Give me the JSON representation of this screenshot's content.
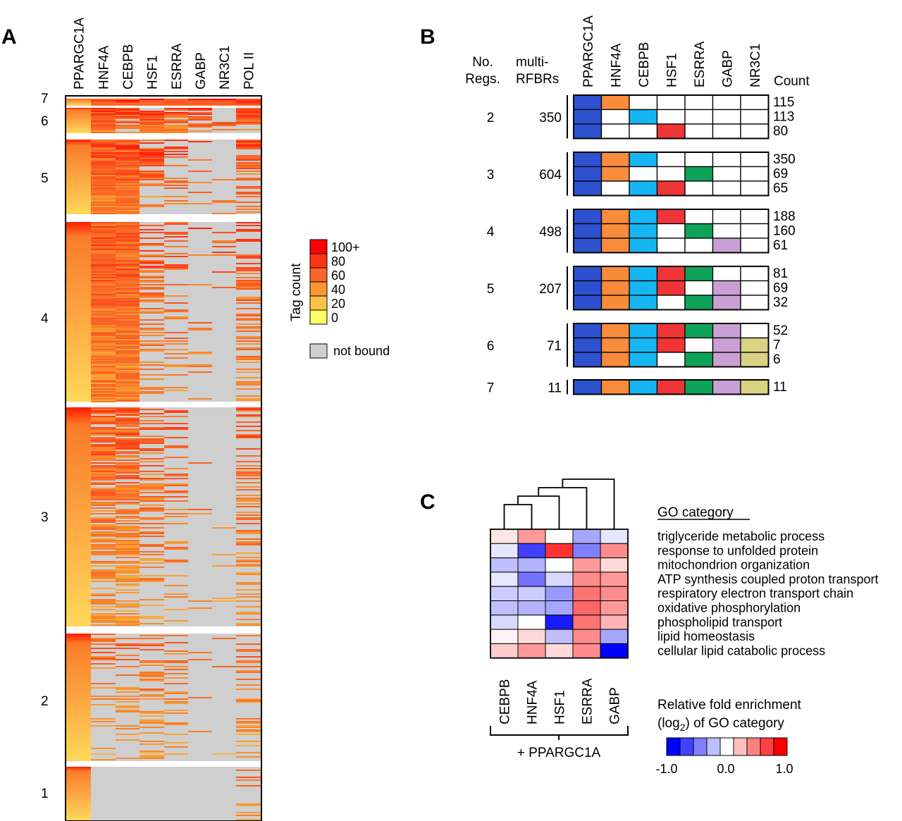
{
  "panel_a": {
    "letter": "A",
    "columns": [
      "PPARGC1A",
      "HNF4A",
      "CEBPB",
      "HSF1",
      "ESRRA",
      "GABP",
      "NR3C1",
      "POL II"
    ],
    "groups": [
      "7",
      "6",
      "5",
      "4",
      "3",
      "2",
      "1"
    ]
  },
  "legend_a": {
    "title": "Tag count",
    "ticks": [
      "100+",
      "80",
      "60",
      "40",
      "20",
      "0"
    ],
    "scale_colors": [
      "#ff0000",
      "#fd3413",
      "#fa6526",
      "#f8962f",
      "#fbc246",
      "#ffff66"
    ],
    "not_bound_label": "not bound",
    "not_bound_color": "#cfcfcf"
  },
  "panel_b": {
    "letter": "B",
    "header_no_regs": [
      "No.",
      "Regs."
    ],
    "header_multi": [
      "multi-",
      "RFBRs"
    ],
    "header_count": "Count",
    "columns": [
      "PPARGC1A",
      "HNF4A",
      "CEBPB",
      "HSF1",
      "ESRRA",
      "GABP",
      "NR3C1"
    ],
    "column_colors": [
      "#2d51cf",
      "#f98c3a",
      "#16b6f2",
      "#ef3535",
      "#0fa35a",
      "#c9a0d4",
      "#d9d282"
    ],
    "groups": [
      {
        "regs": "2",
        "multi": "350",
        "rows": [
          {
            "bound": [
              1,
              1,
              0,
              0,
              0,
              0,
              0
            ],
            "count": "115"
          },
          {
            "bound": [
              1,
              0,
              1,
              0,
              0,
              0,
              0
            ],
            "count": "113"
          },
          {
            "bound": [
              1,
              0,
              0,
              1,
              0,
              0,
              0
            ],
            "count": "80"
          }
        ]
      },
      {
        "regs": "3",
        "multi": "604",
        "rows": [
          {
            "bound": [
              1,
              1,
              1,
              0,
              0,
              0,
              0
            ],
            "count": "350"
          },
          {
            "bound": [
              1,
              1,
              0,
              0,
              1,
              0,
              0
            ],
            "count": "69"
          },
          {
            "bound": [
              1,
              0,
              1,
              1,
              0,
              0,
              0
            ],
            "count": "65"
          }
        ]
      },
      {
        "regs": "4",
        "multi": "498",
        "rows": [
          {
            "bound": [
              1,
              1,
              1,
              1,
              0,
              0,
              0
            ],
            "count": "188"
          },
          {
            "bound": [
              1,
              1,
              1,
              0,
              1,
              0,
              0
            ],
            "count": "160"
          },
          {
            "bound": [
              1,
              1,
              1,
              0,
              0,
              1,
              0
            ],
            "count": "61"
          }
        ]
      },
      {
        "regs": "5",
        "multi": "207",
        "rows": [
          {
            "bound": [
              1,
              1,
              1,
              1,
              1,
              0,
              0
            ],
            "count": "81"
          },
          {
            "bound": [
              1,
              1,
              1,
              1,
              0,
              1,
              0
            ],
            "count": "69"
          },
          {
            "bound": [
              1,
              1,
              1,
              0,
              1,
              1,
              0
            ],
            "count": "32"
          }
        ]
      },
      {
        "regs": "6",
        "multi": "71",
        "rows": [
          {
            "bound": [
              1,
              1,
              1,
              1,
              1,
              1,
              0
            ],
            "count": "52"
          },
          {
            "bound": [
              1,
              1,
              1,
              1,
              0,
              1,
              1
            ],
            "count": "7"
          },
          {
            "bound": [
              1,
              1,
              1,
              0,
              1,
              1,
              1
            ],
            "count": "6"
          }
        ]
      },
      {
        "regs": "7",
        "multi": "11",
        "rows": [
          {
            "bound": [
              1,
              1,
              1,
              1,
              1,
              1,
              1
            ],
            "count": "11"
          }
        ]
      }
    ]
  },
  "chart_data": {
    "type": "heatmap",
    "panel": "C",
    "x_categories": [
      "CEBPB",
      "HNF4A",
      "HSF1",
      "ESRRA",
      "GABP"
    ],
    "x_group_label": "+ PPARGC1A",
    "y_header": "GO category",
    "y_categories": [
      "triglyceride metabolic process",
      "response to unfolded protein",
      "mitochondrion organization",
      "ATP synthesis coupled proton transport",
      "respiratory electron transport chain",
      "oxidative phosphorylation",
      "phospholipid transport",
      "lipid homeostasis",
      "cellular lipid catabolic process"
    ],
    "values": [
      [
        0.1,
        0.4,
        0.0,
        -0.35,
        -0.1
      ],
      [
        -0.1,
        -0.75,
        0.8,
        -0.5,
        0.45
      ],
      [
        -0.25,
        -0.3,
        0.0,
        0.4,
        0.15
      ],
      [
        -0.1,
        -0.55,
        -0.15,
        0.45,
        0.4
      ],
      [
        -0.2,
        -0.2,
        -0.4,
        0.55,
        0.45
      ],
      [
        -0.25,
        -0.3,
        -0.35,
        0.6,
        0.4
      ],
      [
        -0.15,
        0.0,
        -0.9,
        0.55,
        0.3
      ],
      [
        0.05,
        0.15,
        -0.25,
        0.45,
        -0.35
      ],
      [
        0.2,
        0.4,
        0.15,
        0.45,
        -1.0
      ]
    ],
    "color_scale": {
      "title_parts": [
        "Relative fold enrichment",
        "(log",
        "2",
        ") of GO category"
      ],
      "min": -1.0,
      "max": 1.0,
      "tick_labels": [
        "-1.0",
        "0.0",
        "1.0"
      ],
      "low_color": "#0000ff",
      "mid_color": "#ffffff",
      "high_color": "#ff0000"
    }
  },
  "panel_c": {
    "letter": "C"
  }
}
